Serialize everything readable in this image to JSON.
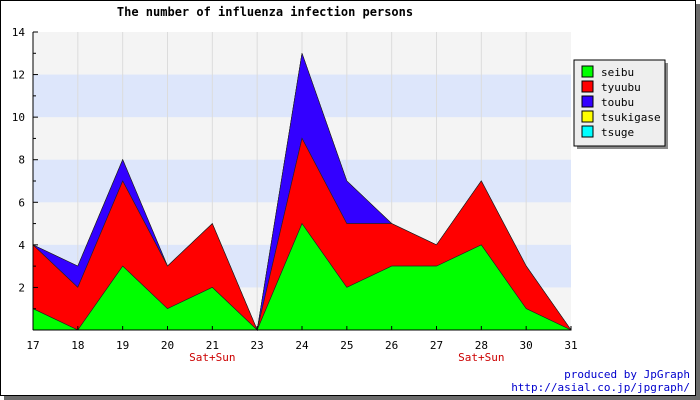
{
  "chart_data": {
    "type": "area",
    "title": "The number of influenza infection persons",
    "categories": [
      "17",
      "18",
      "19",
      "20",
      "21",
      "23",
      "24",
      "25",
      "26",
      "27",
      "28",
      "30",
      "31"
    ],
    "category_sublabels": [
      {
        "category": "21",
        "text": "Sat+Sun"
      },
      {
        "category": "28",
        "text": "Sat+Sun"
      }
    ],
    "stacked": true,
    "ylim": [
      0,
      14
    ],
    "yticks": [
      "2",
      "4",
      "6",
      "8",
      "10",
      "12",
      "14"
    ],
    "grid": "horizontal bands",
    "legend_placement": "right",
    "series": [
      {
        "name": "seibu",
        "color": "#00ff00",
        "values": [
          1,
          0,
          3,
          1,
          2,
          0,
          5,
          2,
          3,
          3,
          4,
          1,
          0
        ]
      },
      {
        "name": "tyuubu",
        "color": "#ff0000",
        "values": [
          3,
          2,
          4,
          2,
          3,
          0,
          4,
          3,
          2,
          1,
          3,
          2,
          0
        ]
      },
      {
        "name": "toubu",
        "color": "#3300ff",
        "values": [
          0,
          1,
          1,
          0,
          0,
          0,
          4,
          2,
          0,
          0,
          0,
          0,
          0
        ]
      },
      {
        "name": "tsukigase",
        "color": "#ffff00",
        "values": [
          0,
          0,
          0,
          0,
          0,
          0,
          0,
          0,
          0,
          0,
          0,
          0,
          0
        ]
      },
      {
        "name": "tsuge",
        "color": "#00ffff",
        "values": [
          0,
          0,
          0,
          0,
          0,
          0,
          0,
          0,
          0,
          0,
          0,
          0,
          0
        ]
      }
    ],
    "colors": {
      "band_blue": "#dde6fb",
      "band_gray": "#f4f4f4",
      "sublabel": "#cc0000",
      "credit": "#0000cc"
    },
    "credit_line1": "produced by JpGraph",
    "credit_line2": "http://asial.co.jp/jpgraph/"
  }
}
